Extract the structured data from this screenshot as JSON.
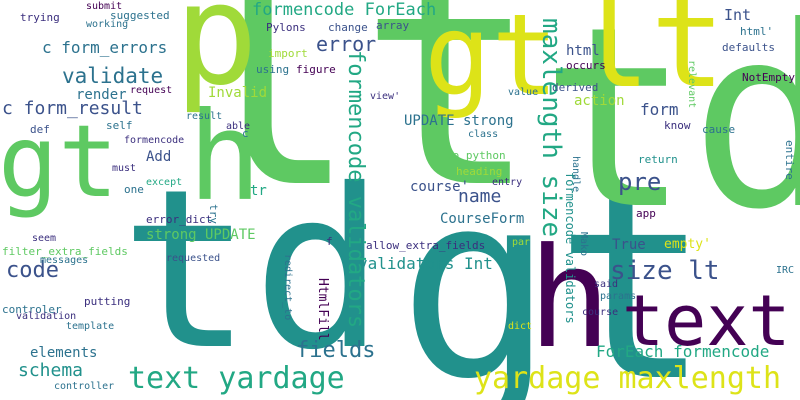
{
  "cloud": {
    "palette": {
      "dark_purple": "#440154",
      "indigo": "#3b2f7e",
      "slate_blue": "#3b528b",
      "teal": "#21918c",
      "steel": "#2c728e",
      "green": "#22a884",
      "lime_green": "#5ec962",
      "yellow_green": "#a0da39",
      "yellow": "#dde318"
    },
    "words": [
      {
        "text": "td"
      },
      {
        "text": "gt"
      },
      {
        "text": "lt"
      },
      {
        "text": "td"
      },
      {
        "text": "p"
      },
      {
        "text": "gt"
      },
      {
        "text": "lt"
      },
      {
        "text": "gt"
      },
      {
        "text": "h"
      },
      {
        "text": "text"
      },
      {
        "text": "h"
      },
      {
        "text": "text yardage"
      },
      {
        "text": "yardage maxlength"
      },
      {
        "text": "maxlength size"
      },
      {
        "text": "formencode validators"
      },
      {
        "text": "formencode validators"
      },
      {
        "text": "size lt"
      },
      {
        "text": "formencode ForEach"
      },
      {
        "text": "validate"
      },
      {
        "text": "c form_result"
      },
      {
        "text": "error"
      },
      {
        "text": "c form_errors"
      },
      {
        "text": "UPDATE strong"
      },
      {
        "text": "code"
      },
      {
        "text": "schema"
      },
      {
        "text": "fields"
      },
      {
        "text": "pre"
      },
      {
        "text": "name"
      },
      {
        "text": "form"
      },
      {
        "text": "validators Int"
      },
      {
        "text": "ForEach formencode"
      },
      {
        "text": "elements"
      },
      {
        "text": "CourseForm"
      },
      {
        "text": "course'"
      },
      {
        "text": "strong UPDATE"
      },
      {
        "text": "Int"
      },
      {
        "text": "html"
      },
      {
        "text": "Invalid"
      },
      {
        "text": "render"
      },
      {
        "text": "action"
      },
      {
        "text": "Add"
      },
      {
        "text": "True"
      },
      {
        "text": "empty'"
      },
      {
        "text": "tr"
      },
      {
        "text": "HtmlFill"
      },
      {
        "text": "filter_extra_fields"
      },
      {
        "text": "allow_extra_fields"
      },
      {
        "text": "error_dict"
      },
      {
        "text": "to_python"
      },
      {
        "text": "heading"
      },
      {
        "text": "entry"
      },
      {
        "text": "handle"
      },
      {
        "text": "Mako"
      },
      {
        "text": "app"
      },
      {
        "text": "return"
      },
      {
        "text": "know"
      },
      {
        "text": "cause"
      },
      {
        "text": "entire"
      },
      {
        "text": "NotEmpty"
      },
      {
        "text": "relevant"
      },
      {
        "text": "html'"
      },
      {
        "text": "defaults"
      },
      {
        "text": "occurs"
      },
      {
        "text": "derived"
      },
      {
        "text": "value"
      },
      {
        "text": "view'"
      },
      {
        "text": "array"
      },
      {
        "text": "change"
      },
      {
        "text": "Pylons"
      },
      {
        "text": "import"
      },
      {
        "text": "using"
      },
      {
        "text": "figure"
      },
      {
        "text": "request"
      },
      {
        "text": "result"
      },
      {
        "text": "self"
      },
      {
        "text": "able"
      },
      {
        "text": "c"
      },
      {
        "text": "def"
      },
      {
        "text": "formencode"
      },
      {
        "text": "must"
      },
      {
        "text": "one"
      },
      {
        "text": "except"
      },
      {
        "text": "try"
      },
      {
        "text": "seem"
      },
      {
        "text": "messages"
      },
      {
        "text": "requested"
      },
      {
        "text": "redirect_to"
      },
      {
        "text": "f"
      },
      {
        "text": "par"
      },
      {
        "text": "controler"
      },
      {
        "text": "putting"
      },
      {
        "text": "validation"
      },
      {
        "text": "template"
      },
      {
        "text": "controller"
      },
      {
        "text": "dict"
      },
      {
        "text": "said"
      },
      {
        "text": "params"
      },
      {
        "text": "course"
      },
      {
        "text": "IRC"
      },
      {
        "text": "class"
      },
      {
        "text": "trying"
      },
      {
        "text": "submit"
      },
      {
        "text": "working"
      },
      {
        "text": "suggested"
      }
    ]
  }
}
